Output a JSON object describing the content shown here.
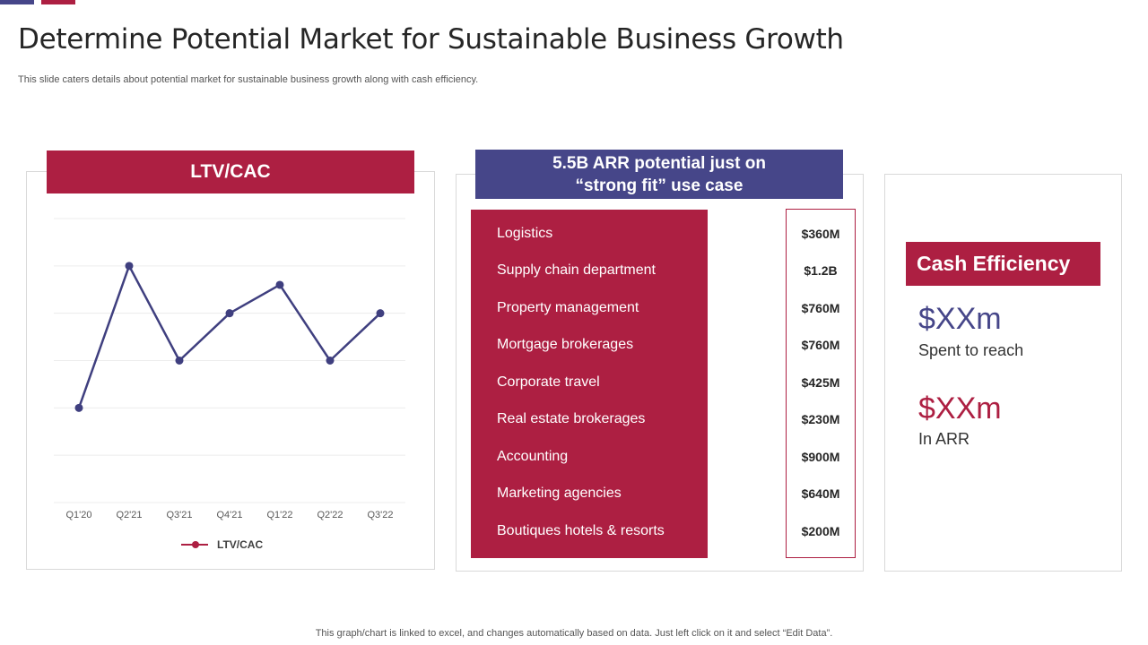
{
  "slide": {
    "title": "Determine Potential Market for Sustainable Business Growth",
    "subtitle": "This slide caters details about potential market for sustainable business growth along with cash efficiency.",
    "footnote": "This graph/chart is linked to excel,  and changes automatically based on data. Just left click on it and select “Edit Data”."
  },
  "ltv_panel": {
    "header": "LTV/CAC"
  },
  "chart_data": {
    "type": "line",
    "title": "",
    "categories": [
      "Q1'20",
      "Q2'21",
      "Q3'21",
      "Q4'21",
      "Q1'22",
      "Q2'22",
      "Q3'22"
    ],
    "series": [
      {
        "name": "LTV/CAC",
        "values": [
          2,
          5,
          3,
          4,
          4.6,
          3,
          4
        ]
      }
    ],
    "ylim": [
      0,
      6
    ],
    "grid": true,
    "legend_position": "bottom",
    "xlabel": "",
    "ylabel": ""
  },
  "arr_panel": {
    "header_line1": "5.5B ARR potential just on",
    "header_line2": "“strong fit” use case",
    "items": [
      {
        "label": "Logistics",
        "value": "$360M"
      },
      {
        "label": "Supply chain department",
        "value": "$1.2B"
      },
      {
        "label": "Property management",
        "value": "$760M"
      },
      {
        "label": "Mortgage brokerages",
        "value": "$760M"
      },
      {
        "label": "Corporate travel",
        "value": "$425M"
      },
      {
        "label": "Real estate brokerages",
        "value": "$230M"
      },
      {
        "label": "Accounting",
        "value": "$900M"
      },
      {
        "label": "Marketing agencies",
        "value": "$640M"
      },
      {
        "label": "Boutiques hotels & resorts",
        "value": "$200M"
      }
    ]
  },
  "cash_panel": {
    "header": "Cash Efficiency",
    "metric1_value": "$XXm",
    "metric1_caption": "Spent to reach",
    "metric2_value": "$XXm",
    "metric2_caption": "In ARR"
  },
  "colors": {
    "crimson": "#ad1f42",
    "indigo": "#464689",
    "line": "#3f3f7f",
    "grid": "#ececec"
  }
}
